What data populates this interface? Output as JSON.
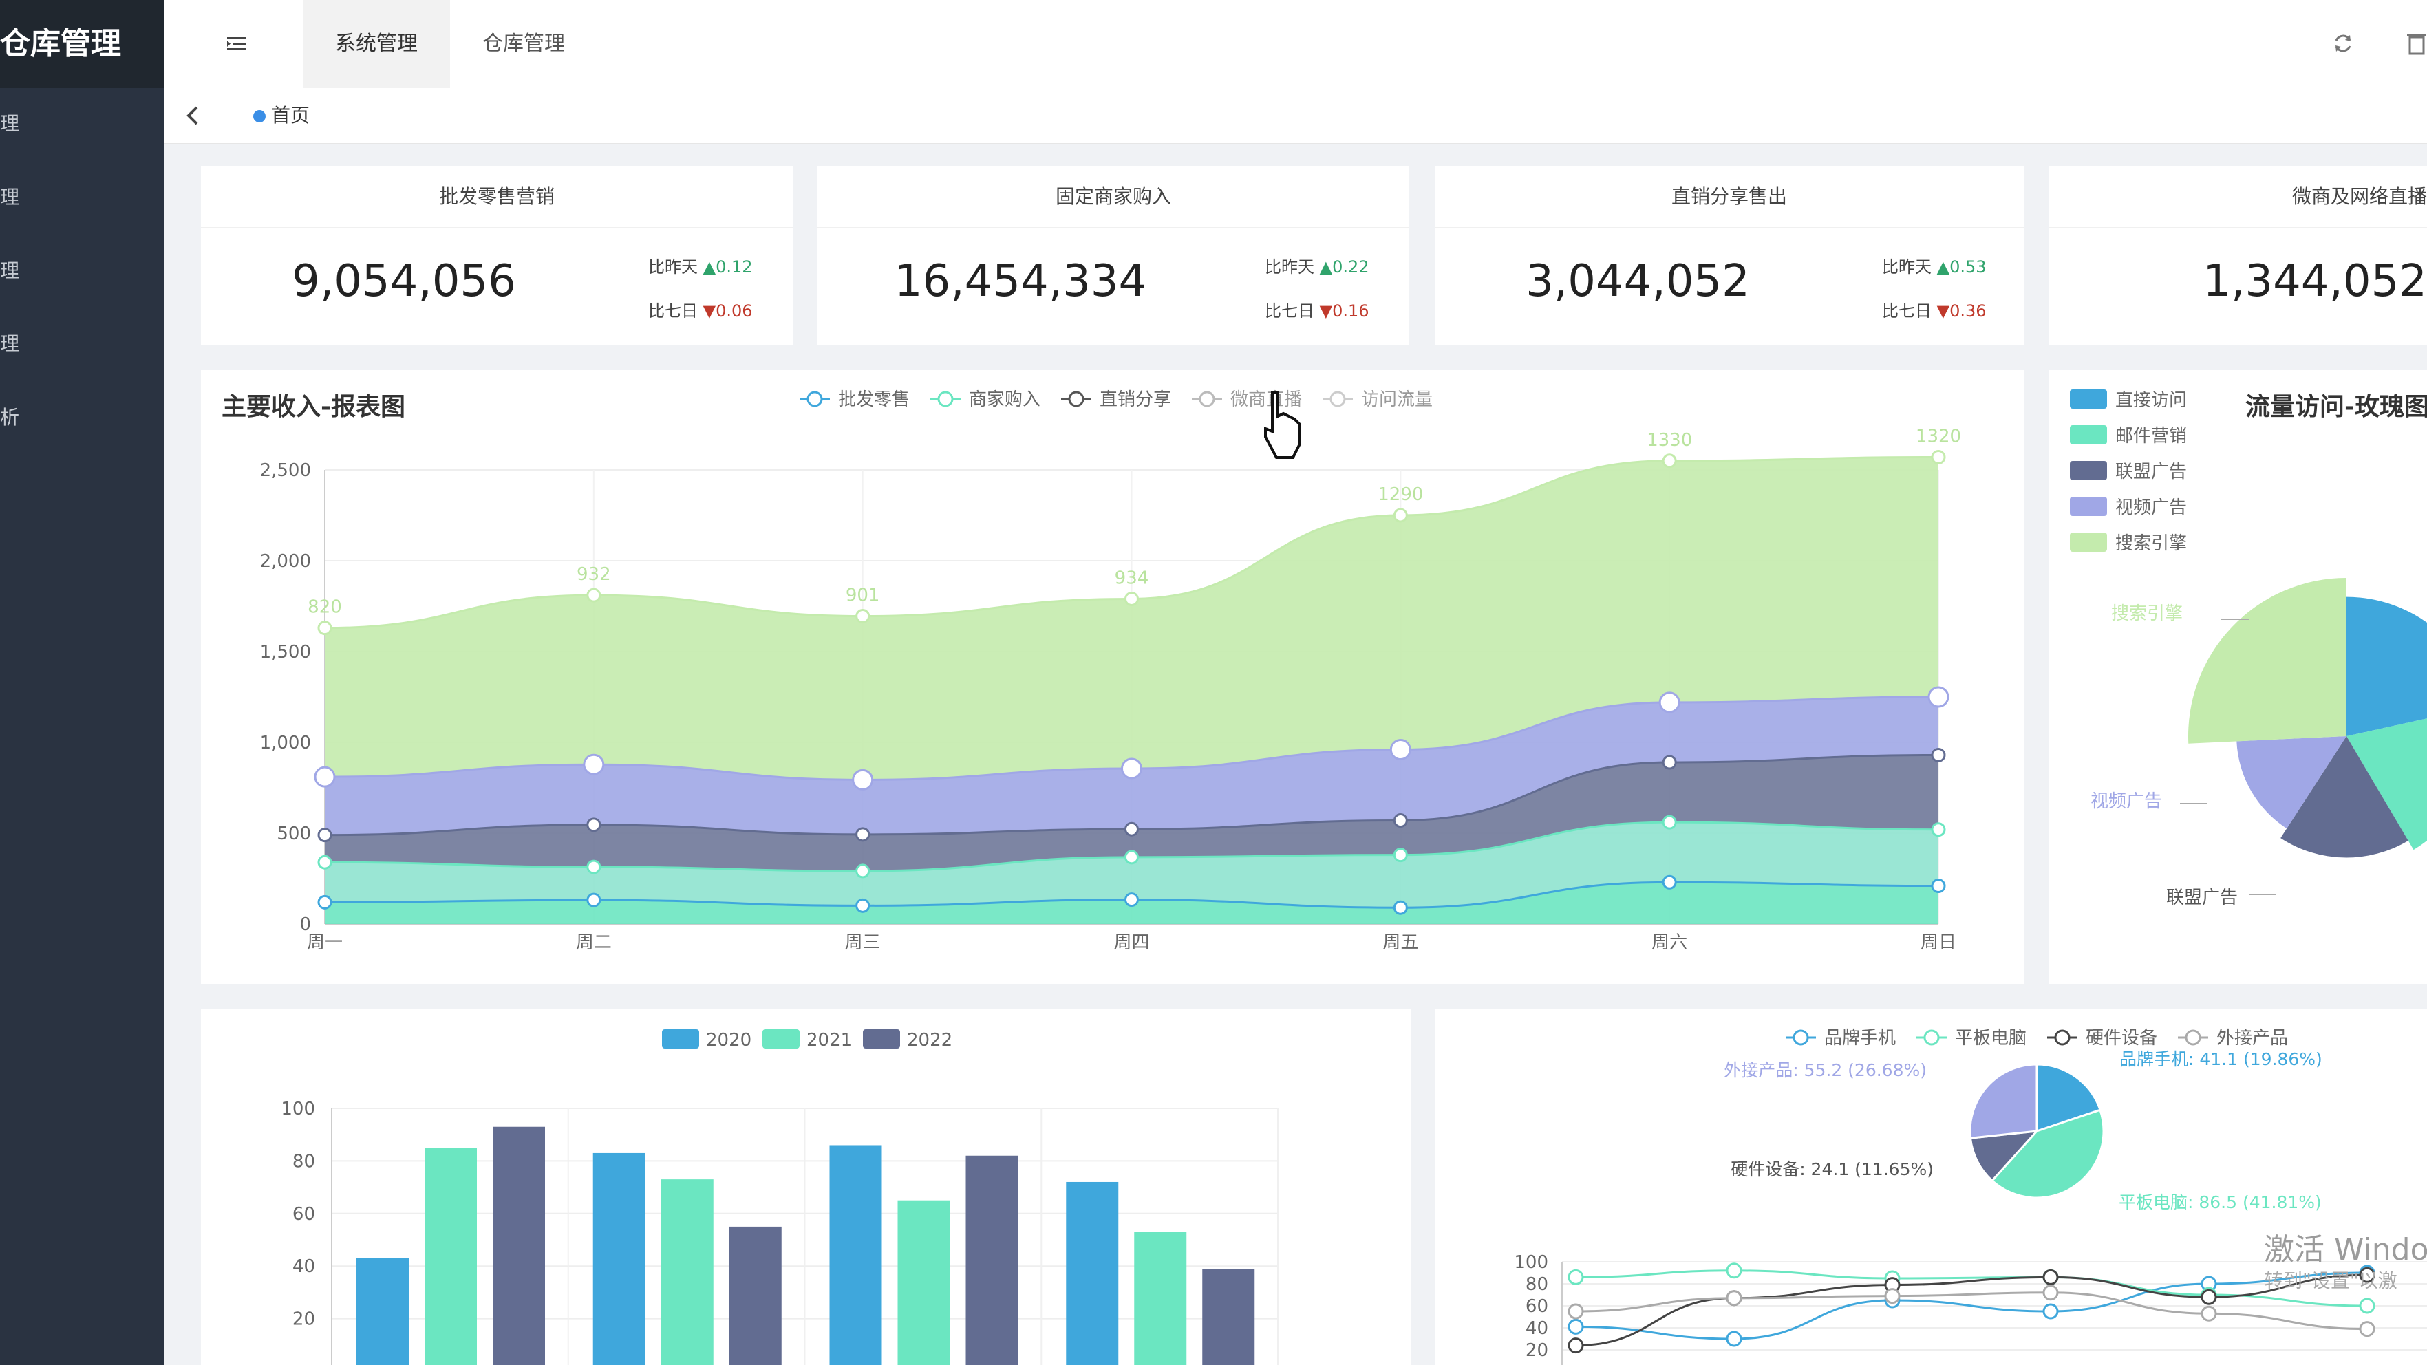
{
  "app": {
    "title": "仓库管理"
  },
  "sidebar": {
    "items": [
      {
        "label": "理"
      },
      {
        "label": "理"
      },
      {
        "label": "理"
      },
      {
        "label": "理"
      },
      {
        "label": "析"
      }
    ]
  },
  "header": {
    "tabs": [
      {
        "label": "系统管理"
      },
      {
        "label": "仓库管理"
      }
    ]
  },
  "tags": {
    "home": "首页"
  },
  "stats": [
    {
      "title": "批发零售营销",
      "value": "9,054,056",
      "day_label": "比昨天",
      "day_value": "0.12",
      "week_label": "比七日",
      "week_value": "0.06"
    },
    {
      "title": "固定商家购入",
      "value": "16,454,334",
      "day_label": "比昨天",
      "day_value": "0.22",
      "week_label": "比七日",
      "week_value": "0.16"
    },
    {
      "title": "直销分享售出",
      "value": "3,044,052",
      "day_label": "比昨天",
      "day_value": "0.53",
      "week_label": "比七日",
      "week_value": "0.36"
    },
    {
      "title": "微商及网络直播",
      "value": "1,344,052"
    }
  ],
  "colors": {
    "blue": "#3fa7dc",
    "green": "#6be6c1",
    "dark": "#626c91",
    "purple": "#a0a7e6",
    "lightgreen": "#c4ebad",
    "pie_light": "#96dee8"
  },
  "chart_data": [
    {
      "type": "area",
      "title": "主要收入-报表图",
      "categories": [
        "周一",
        "周二",
        "周三",
        "周四",
        "周五",
        "周六",
        "周日"
      ],
      "ylim": [
        0,
        2500
      ],
      "yticks": [
        "0",
        "500",
        "1,000",
        "1,500",
        "2,000",
        "2,500"
      ],
      "series": [
        {
          "name": "批发零售",
          "values": [
            120,
            132,
            101,
            134,
            90,
            230,
            210
          ]
        },
        {
          "name": "商家购入",
          "values": [
            220,
            182,
            191,
            234,
            290,
            330,
            310
          ]
        },
        {
          "name": "直销分享",
          "values": [
            150,
            232,
            201,
            154,
            190,
            330,
            410
          ]
        },
        {
          "name": "微商直播",
          "values": [
            320,
            332,
            301,
            334,
            390,
            330,
            320
          ]
        },
        {
          "name": "访问流量",
          "values": [
            820,
            932,
            901,
            934,
            1290,
            1330,
            1320
          ]
        }
      ],
      "data_labels": [
        "820",
        "932",
        "901",
        "934",
        "1290",
        "1330",
        "1320"
      ]
    },
    {
      "type": "pie",
      "title": "流量访问-玫瑰图",
      "legend": [
        "直接访问",
        "邮件营销",
        "联盟广告",
        "视频广告",
        "搜索引擎"
      ],
      "slices": [
        {
          "name": "直接访问",
          "value": 335
        },
        {
          "name": "邮件营销",
          "value": 310
        },
        {
          "name": "联盟广告",
          "value": 274
        },
        {
          "name": "视频广告",
          "value": 235
        },
        {
          "name": "搜索引擎",
          "value": 400
        }
      ],
      "labels": [
        "搜索引擎",
        "视频广告",
        "联盟广告"
      ]
    },
    {
      "type": "bar",
      "legend": [
        "2020",
        "2021",
        "2022"
      ],
      "ylim": [
        0,
        100
      ],
      "yticks": [
        "20",
        "40",
        "60",
        "80",
        "100"
      ],
      "series": [
        {
          "name": "2020",
          "values": [
            43,
            83,
            86,
            72
          ]
        },
        {
          "name": "2021",
          "values": [
            85,
            73,
            65,
            53
          ]
        },
        {
          "name": "2022",
          "values": [
            93,
            55,
            82,
            39
          ]
        }
      ]
    },
    {
      "type": "pie",
      "legend": [
        "品牌手机",
        "平板电脑",
        "硬件设备",
        "外接产品"
      ],
      "slices": [
        {
          "name": "品牌手机",
          "value": 41.1,
          "label": "品牌手机: 41.1 (19.86%)"
        },
        {
          "name": "平板电脑",
          "value": 86.5,
          "label": "平板电脑: 86.5 (41.81%)"
        },
        {
          "name": "硬件设备",
          "value": 24.1,
          "label": "硬件设备: 24.1 (11.65%)"
        },
        {
          "name": "外接产品",
          "value": 55.2,
          "label": "外接产品: 55.2 (26.68%)"
        }
      ]
    },
    {
      "type": "line",
      "ylim": [
        20,
        100
      ],
      "yticks": [
        "20",
        "40",
        "60",
        "80",
        "100"
      ],
      "series": [
        {
          "name": "品牌手机",
          "values": [
            41,
            30,
            65,
            55,
            80,
            90
          ]
        },
        {
          "name": "平板电脑",
          "values": [
            86,
            92,
            85,
            86,
            70,
            60
          ]
        },
        {
          "name": "硬件设备",
          "values": [
            24,
            67,
            79,
            86,
            68,
            88
          ]
        },
        {
          "name": "外接产品",
          "values": [
            55,
            67,
            69,
            72,
            53,
            39
          ]
        }
      ]
    }
  ],
  "watermark": {
    "line1": "激活 Windo",
    "line2": "转到\"设置\"以激"
  }
}
